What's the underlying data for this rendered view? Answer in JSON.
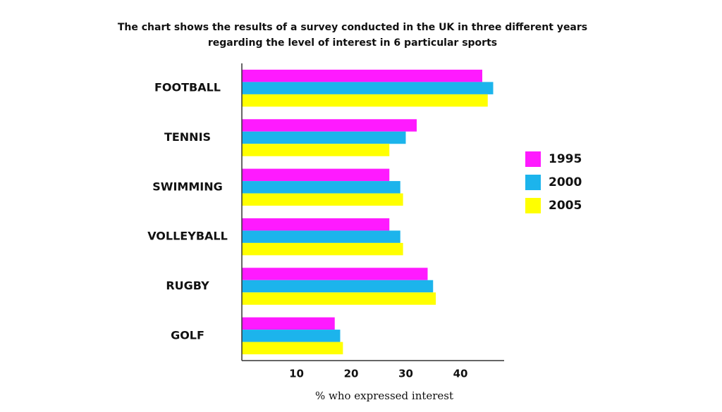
{
  "chart_data": {
    "type": "hbar",
    "title": [
      "The chart shows the results of a survey conducted in the UK in three different years",
      "regarding the level of interest in 6 particular sports"
    ],
    "categories": [
      "FOOTBALL",
      "TENNIS",
      "SWIMMING",
      "VOLLEYBALL",
      "RUGBY",
      "GOLF"
    ],
    "series": [
      {
        "name": "1995",
        "color": "#ff1aff",
        "values": [
          44,
          32,
          27,
          27,
          34,
          17
        ]
      },
      {
        "name": "2000",
        "color": "#1cb4ec",
        "values": [
          46,
          30,
          29,
          29,
          35,
          18
        ]
      },
      {
        "name": "2005",
        "color": "#ffff00",
        "values": [
          45,
          27,
          29.5,
          29.5,
          35.5,
          18.5
        ]
      }
    ],
    "xlabel": "% who expressed interest",
    "xlim": [
      0,
      48
    ],
    "xticks": [
      10,
      20,
      30,
      40
    ],
    "grid": false,
    "legend": "right"
  }
}
